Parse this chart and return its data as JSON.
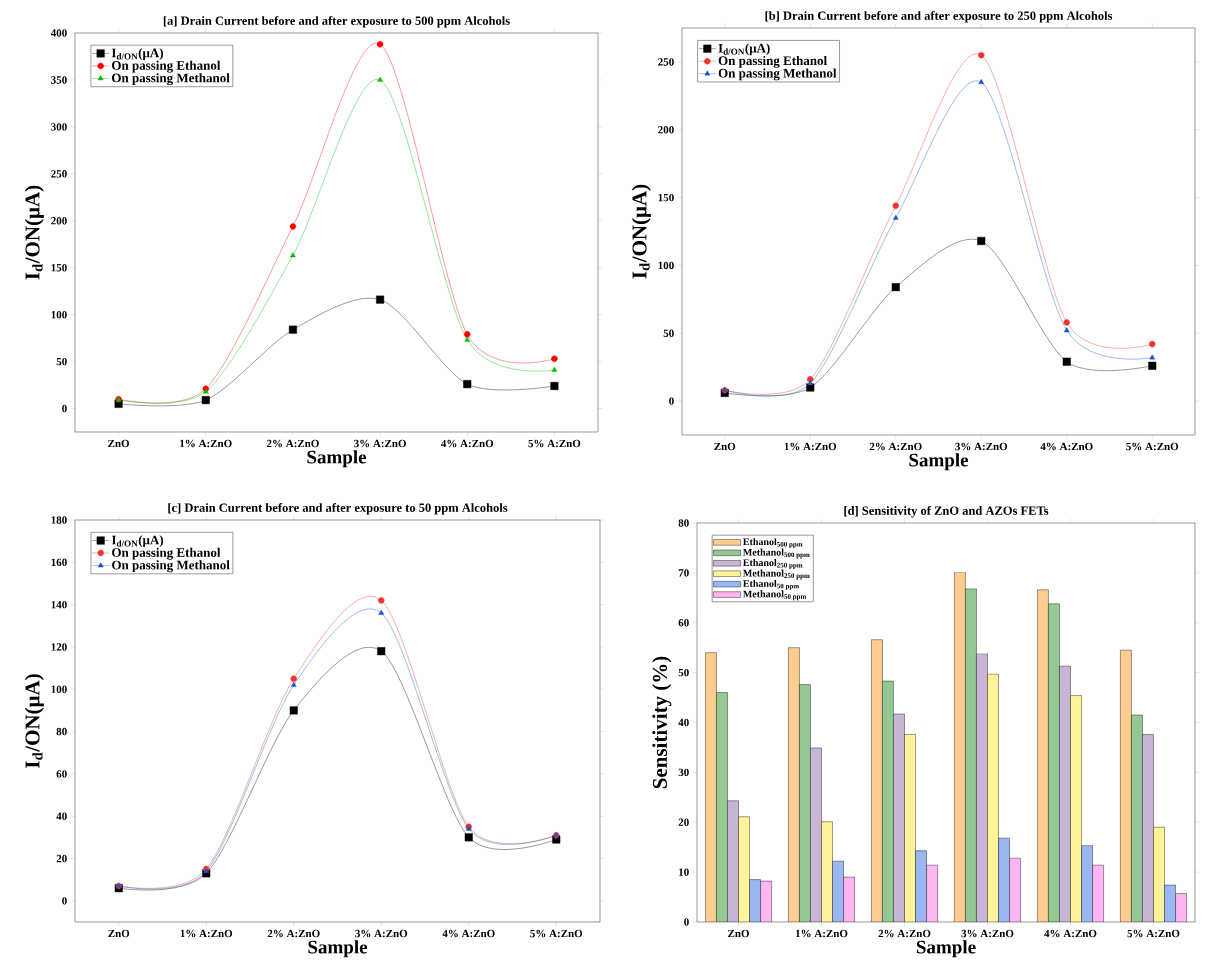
{
  "chart_data": [
    {
      "type": "line",
      "title": "[a] Drain Current before and after exposure to 500 ppm Alcohols",
      "xlabel": "Sample",
      "ylabel": "I$_{d}$/ON(μA)",
      "categories": [
        "ZnO",
        "1% A:ZnO",
        "2% A:ZnO",
        "3% A:ZnO",
        "4% A:ZnO",
        "5% A:ZnO"
      ],
      "ylim": [
        -25,
        400
      ],
      "yticks": [
        0,
        50,
        100,
        150,
        200,
        250,
        300,
        350,
        400
      ],
      "legend": "top left",
      "series": [
        {
          "name": "I$_{d/ON}$(μA)",
          "color": "#000000",
          "marker": "square",
          "values": [
            5,
            9,
            84,
            116,
            26,
            24
          ]
        },
        {
          "name": "On passing Ethanol",
          "color": "#ff0000",
          "marker": "circle",
          "values": [
            10,
            21,
            194,
            388,
            79,
            53
          ]
        },
        {
          "name": "On passing Methanol",
          "color": "#00bb00",
          "marker": "triangle",
          "values": [
            9,
            18,
            163,
            350,
            73,
            41
          ]
        }
      ]
    },
    {
      "type": "line",
      "title": "[b] Drain Current before and after exposure to 250 ppm Alcohols",
      "xlabel": "Sample",
      "ylabel": "I$_{d}$/ON(μA)",
      "categories": [
        "ZnO",
        "1% A:ZnO",
        "2% A:ZnO",
        "3% A:ZnO",
        "4% A:ZnO",
        "5% A:ZnO"
      ],
      "ylim": [
        -25,
        275
      ],
      "yticks": [
        0,
        50,
        100,
        150,
        200,
        250
      ],
      "legend": "top left",
      "series": [
        {
          "name": "I$_{d/ON}$(μA)",
          "color": "#000000",
          "marker": "square",
          "values": [
            6,
            10,
            84,
            118,
            29,
            26
          ]
        },
        {
          "name": "On passing Ethanol",
          "color": "#ee3333",
          "marker": "circle",
          "values": [
            8,
            16,
            144,
            255,
            58,
            42
          ]
        },
        {
          "name": "On passing Methanol",
          "color": "#1155cc",
          "marker": "triangle",
          "values": [
            8,
            13,
            135,
            235,
            52,
            32
          ]
        }
      ]
    },
    {
      "type": "line",
      "title": "[c] Drain Current before and after exposure to 50 ppm Alcohols",
      "xlabel": "Sample",
      "ylabel": "I$_{d}$/ON(μA)",
      "categories": [
        "ZnO",
        "1% A:ZnO",
        "2% A:ZnO",
        "3% A:ZnO",
        "4% A:ZnO",
        "5% A:ZnO"
      ],
      "ylim": [
        -10,
        180
      ],
      "yticks": [
        0,
        20,
        40,
        60,
        80,
        100,
        120,
        140,
        160,
        180
      ],
      "legend": "top left",
      "series": [
        {
          "name": "I$_{d/ON}$(μA)",
          "color": "#000000",
          "marker": "square",
          "values": [
            6,
            13,
            90,
            118,
            30,
            29
          ]
        },
        {
          "name": "On passing Ethanol",
          "color": "#ee3333",
          "marker": "circle",
          "values": [
            7,
            15,
            105,
            142,
            35,
            31
          ]
        },
        {
          "name": "On passing Methanol",
          "color": "#1155cc",
          "marker": "triangle",
          "values": [
            7,
            14,
            102,
            136,
            34,
            31
          ]
        }
      ]
    },
    {
      "type": "bar",
      "title": "[d] Sensitivity of  ZnO and AZOs FETs",
      "xlabel": "Sample",
      "ylabel": "Sensitivity (%)",
      "categories": [
        "ZnO",
        "1% A:ZnO",
        "2% A:ZnO",
        "3% A:ZnO",
        "4% A:ZnO",
        "5% A:ZnO"
      ],
      "ylim": [
        0,
        80
      ],
      "yticks": [
        0,
        10,
        20,
        30,
        40,
        50,
        60,
        70,
        80
      ],
      "legend": "top left",
      "series": [
        {
          "name": "Ethanol$_{500 ppm}$",
          "color": "#ffcc8f",
          "values": [
            54,
            55,
            56.6,
            70.1,
            66.6,
            54.5
          ]
        },
        {
          "name": "Methanol$_{500 ppm}$",
          "color": "#94c994",
          "values": [
            46,
            47.6,
            48.3,
            66.8,
            63.8,
            41.5
          ]
        },
        {
          "name": "Ethanol$_{250 ppm}$",
          "color": "#c8b4d4",
          "values": [
            24.3,
            34.9,
            41.7,
            53.8,
            51.3,
            37.6
          ]
        },
        {
          "name": "Methanol$_{250 ppm}$",
          "color": "#fff39a",
          "values": [
            21.1,
            20.1,
            37.6,
            49.7,
            45.4,
            19
          ]
        },
        {
          "name": "Ethanol$_{50 ppm}$",
          "color": "#99b8f2",
          "values": [
            8.5,
            12.2,
            14.3,
            16.8,
            15.3,
            7.4
          ]
        },
        {
          "name": "Methanol$_{50 ppm}$",
          "color": "#ffb5f2",
          "values": [
            8.2,
            9,
            11.4,
            12.8,
            11.4,
            5.7
          ]
        }
      ]
    }
  ]
}
